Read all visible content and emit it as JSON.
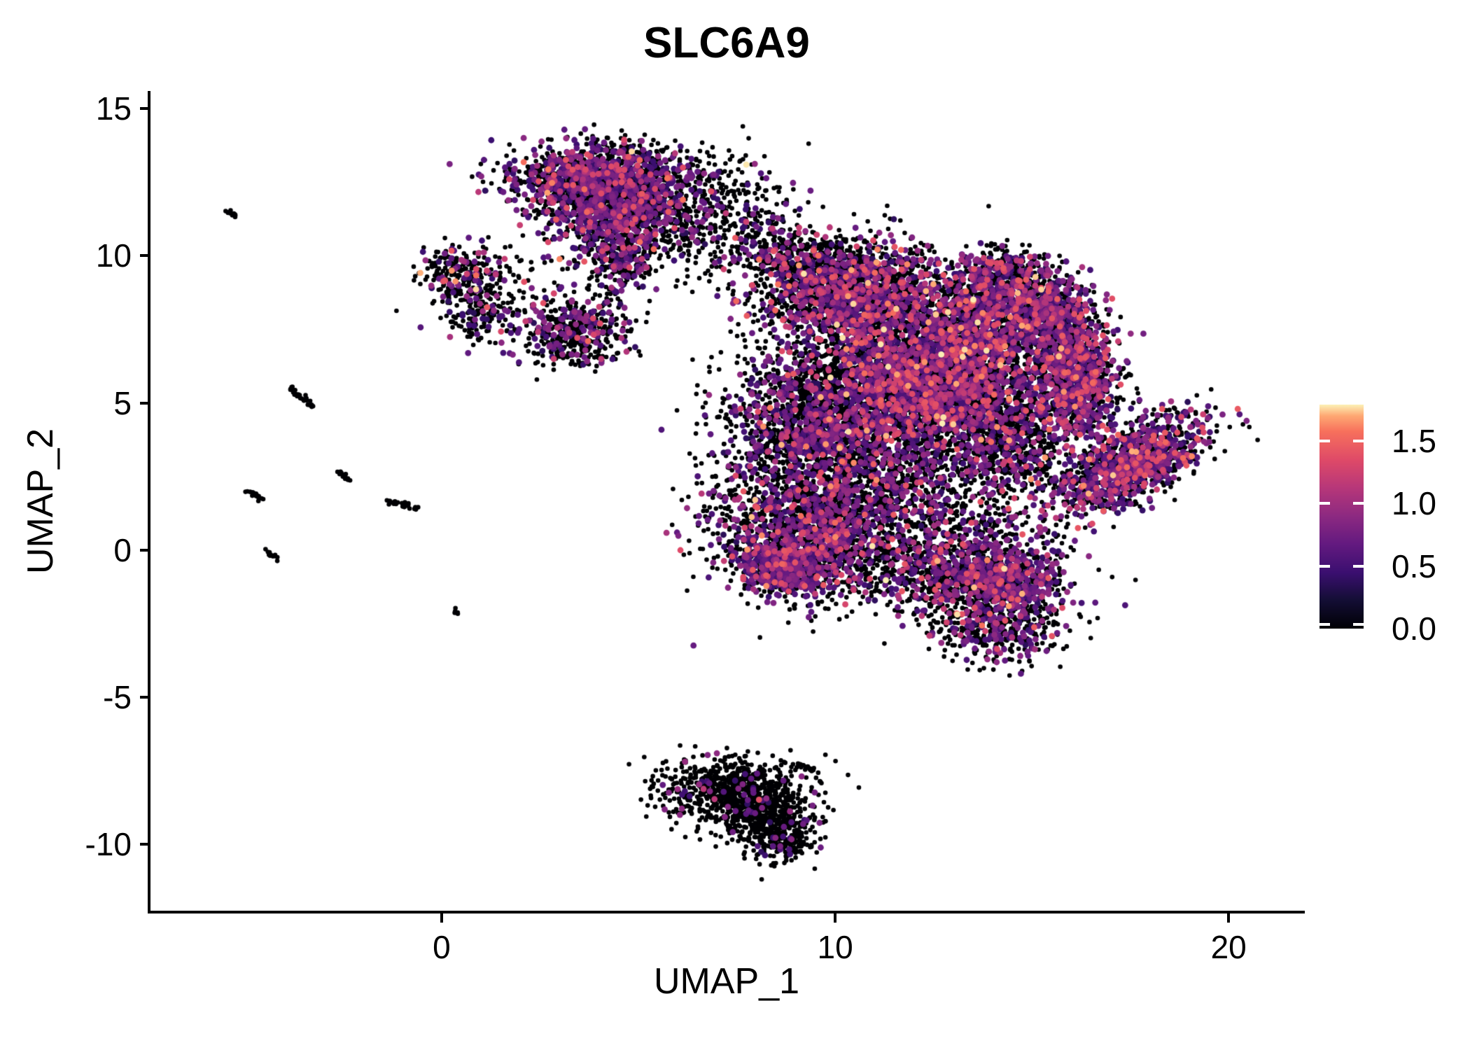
{
  "chart_data": {
    "type": "scatter",
    "title": "SLC6A9",
    "xlabel": "UMAP_1",
    "ylabel": "UMAP_2",
    "xlim": [
      -7.4,
      21.9
    ],
    "ylim": [
      -12.3,
      15.6
    ],
    "grid": false,
    "xticks": {
      "values": [
        0,
        10,
        20
      ],
      "labels": [
        "0",
        "10",
        "20"
      ]
    },
    "yticks": {
      "values": [
        15,
        10,
        5,
        0,
        -5,
        -10
      ],
      "labels": [
        "15",
        "10",
        "5",
        "0",
        "-5",
        "-10"
      ]
    },
    "legend": {
      "position": "right",
      "colormap": "magma",
      "range": [
        0,
        1.79
      ],
      "ticks": {
        "values": [
          1.5,
          1.0,
          0.5,
          0.0
        ],
        "labels": [
          "1.5",
          "1.0",
          "0.5",
          "0.0"
        ]
      },
      "anchors": [
        [
          0.0,
          "#000004"
        ],
        [
          0.13,
          "#140E36"
        ],
        [
          0.25,
          "#3B0F70"
        ],
        [
          0.38,
          "#641A80"
        ],
        [
          0.5,
          "#8C2981"
        ],
        [
          0.63,
          "#B73779"
        ],
        [
          0.75,
          "#DE4968"
        ],
        [
          0.88,
          "#F7705C"
        ],
        [
          0.95,
          "#FEA873"
        ],
        [
          1.0,
          "#FCF1B6"
        ]
      ]
    },
    "point_style": {
      "radius_base": 3.3,
      "radius_expressing": 4.4
    },
    "expression_bins": {
      "purple": [
        0.35,
        0.95
      ],
      "pink": [
        1.0,
        1.45
      ],
      "hot": [
        1.5,
        1.79
      ]
    },
    "seed": 1337,
    "clusters": [
      {
        "name": "streak-far-left-top",
        "type": "streak",
        "x1": -5.45,
        "y1": 11.55,
        "x2": -5.2,
        "y2": 11.3,
        "n": 12,
        "p": [
          0,
          0,
          0
        ]
      },
      {
        "name": "streak-left-5",
        "type": "streak",
        "x1": -3.85,
        "y1": 5.5,
        "x2": -3.3,
        "y2": 4.95,
        "n": 30,
        "p": [
          0,
          0,
          0
        ]
      },
      {
        "name": "streak-left-2a",
        "type": "streak",
        "x1": -4.9,
        "y1": 2.0,
        "x2": -4.55,
        "y2": 1.72,
        "n": 16,
        "p": [
          0,
          0,
          0
        ]
      },
      {
        "name": "streak-left-2b",
        "type": "streak",
        "x1": -2.62,
        "y1": 2.68,
        "x2": -2.33,
        "y2": 2.38,
        "n": 14,
        "p": [
          0.08,
          0,
          0
        ]
      },
      {
        "name": "streak-left-1",
        "type": "streak",
        "x1": -1.35,
        "y1": 1.65,
        "x2": -0.65,
        "y2": 1.42,
        "n": 26,
        "p": [
          0,
          0,
          0
        ]
      },
      {
        "name": "streak-left-0",
        "type": "streak",
        "x1": -4.45,
        "y1": -0.02,
        "x2": -4.22,
        "y2": -0.3,
        "n": 12,
        "p": [
          0,
          0,
          0
        ]
      },
      {
        "name": "streak-left-neg2",
        "type": "streak",
        "x1": 0.3,
        "y1": -2.02,
        "x2": 0.42,
        "y2": -2.15,
        "n": 5,
        "p": [
          0,
          0,
          0
        ]
      },
      {
        "name": "left-small-top",
        "type": "gauss",
        "cx": 0.45,
        "cy": 9.35,
        "sx": 0.52,
        "sy": 0.48,
        "n": 230,
        "p": [
          0.22,
          0.05,
          0.02
        ]
      },
      {
        "name": "left-small-bottom",
        "type": "gauss",
        "cx": 0.95,
        "cy": 7.95,
        "sx": 0.5,
        "sy": 0.42,
        "n": 150,
        "p": [
          0.17,
          0.03,
          0
        ]
      },
      {
        "name": "mid-left-cluster",
        "type": "gauss",
        "cx": 3.35,
        "cy": 7.4,
        "sx": 0.66,
        "sy": 0.56,
        "n": 470,
        "p": [
          0.22,
          0.04,
          0.003
        ]
      },
      {
        "name": "mid-left-bridge",
        "type": "gauss",
        "cx": 2.1,
        "cy": 9.1,
        "sx": 0.75,
        "sy": 0.65,
        "n": 55,
        "p": [
          0.12,
          0.02,
          0
        ]
      },
      {
        "name": "top-cluster-core",
        "type": "gauss",
        "cx": 4.1,
        "cy": 12.55,
        "sx": 1.15,
        "sy": 0.62,
        "n": 1500,
        "p": [
          0.32,
          0.055,
          0.008
        ]
      },
      {
        "name": "top-cluster-lower",
        "type": "gauss",
        "cx": 4.65,
        "cy": 11.25,
        "sx": 0.95,
        "sy": 0.7,
        "n": 750,
        "p": [
          0.3,
          0.05,
          0.005
        ]
      },
      {
        "name": "top-cluster-tail",
        "type": "gauss",
        "cx": 4.5,
        "cy": 9.9,
        "sx": 0.5,
        "sy": 0.65,
        "n": 240,
        "p": [
          0.27,
          0.03,
          0
        ]
      },
      {
        "name": "top-bridge-right",
        "type": "gauss",
        "cx": 6.6,
        "cy": 11.9,
        "sx": 1.15,
        "sy": 0.8,
        "n": 300,
        "p": [
          0.17,
          0.03,
          0.003
        ]
      },
      {
        "name": "top-bridge-lower",
        "type": "gauss",
        "cx": 7.1,
        "cy": 10.2,
        "sx": 0.9,
        "sy": 0.7,
        "n": 130,
        "p": [
          0.14,
          0.02,
          0
        ]
      },
      {
        "name": "bridge-to-main",
        "type": "gauss",
        "cx": 8.1,
        "cy": 10.9,
        "sx": 0.45,
        "sy": 0.6,
        "n": 70,
        "p": [
          0.15,
          0.03,
          0
        ]
      },
      {
        "name": "main-top-lobe",
        "type": "gauss",
        "cx": 10.35,
        "cy": 8.75,
        "sx": 1.2,
        "sy": 0.85,
        "n": 1800,
        "p": [
          0.28,
          0.08,
          0.012
        ]
      },
      {
        "name": "main-top-left-edge",
        "type": "gauss",
        "cx": 9.0,
        "cy": 9.9,
        "sx": 0.65,
        "sy": 0.5,
        "n": 200,
        "p": [
          0.2,
          0.1,
          0.01
        ]
      },
      {
        "name": "main-central-dense",
        "type": "gauss",
        "cx": 12.5,
        "cy": 5.8,
        "sx": 1.4,
        "sy": 1.35,
        "n": 4300,
        "p": [
          0.3,
          0.08,
          0.014
        ]
      },
      {
        "name": "main-left-lobe",
        "type": "gauss",
        "cx": 9.6,
        "cy": 4.4,
        "sx": 1.1,
        "sy": 1.35,
        "n": 1900,
        "p": [
          0.24,
          0.04,
          0.004
        ]
      },
      {
        "name": "main-lower-bridge",
        "type": "gauss",
        "cx": 10.9,
        "cy": 2.0,
        "sx": 1.65,
        "sy": 1.05,
        "n": 1100,
        "p": [
          0.21,
          0.04,
          0.003
        ]
      },
      {
        "name": "arm-top",
        "type": "gauss",
        "cx": 14.3,
        "cy": 9.35,
        "sx": 0.6,
        "sy": 0.45,
        "n": 380,
        "p": [
          0.3,
          0.07,
          0.008
        ]
      },
      {
        "name": "arm-upper",
        "type": "gauss",
        "cx": 15.5,
        "cy": 8.2,
        "sx": 0.55,
        "sy": 0.6,
        "n": 520,
        "p": [
          0.36,
          0.07,
          0.01
        ]
      },
      {
        "name": "arm-mid",
        "type": "gauss",
        "cx": 16.1,
        "cy": 6.6,
        "sx": 0.5,
        "sy": 0.75,
        "n": 560,
        "p": [
          0.4,
          0.08,
          0.01
        ]
      },
      {
        "name": "arm-lower",
        "type": "gauss",
        "cx": 16.25,
        "cy": 5.2,
        "sx": 0.5,
        "sy": 0.7,
        "n": 480,
        "p": [
          0.42,
          0.08,
          0.008
        ]
      },
      {
        "name": "main-right-mid",
        "type": "gauss",
        "cx": 14.6,
        "cy": 3.4,
        "sx": 0.85,
        "sy": 0.95,
        "n": 600,
        "p": [
          0.25,
          0.05,
          0.005
        ]
      },
      {
        "name": "main-upper-right",
        "type": "gauss",
        "cx": 13.8,
        "cy": 7.9,
        "sx": 0.85,
        "sy": 0.75,
        "n": 800,
        "p": [
          0.33,
          0.1,
          0.02
        ]
      },
      {
        "name": "main-bottom-left",
        "type": "gauss",
        "cx": 9.4,
        "cy": 0.3,
        "sx": 1.05,
        "sy": 1.0,
        "n": 1400,
        "p": [
          0.28,
          0.06,
          0.004
        ]
      },
      {
        "name": "bottom-left-purple-pocket",
        "type": "gauss",
        "cx": 8.7,
        "cy": -0.6,
        "sx": 0.5,
        "sy": 0.42,
        "n": 360,
        "p": [
          0.55,
          0.1,
          0.005
        ]
      },
      {
        "name": "main-bottom-right",
        "type": "gauss",
        "cx": 13.2,
        "cy": -0.7,
        "sx": 1.25,
        "sy": 0.9,
        "n": 1150,
        "p": [
          0.26,
          0.06,
          0.004
        ]
      },
      {
        "name": "bottom-right-purple-pocket",
        "type": "gauss",
        "cx": 14.35,
        "cy": -0.9,
        "sx": 0.55,
        "sy": 0.45,
        "n": 320,
        "p": [
          0.45,
          0.1,
          0.005
        ]
      },
      {
        "name": "main-bottom-tail",
        "type": "gauss",
        "cx": 14.2,
        "cy": -2.4,
        "sx": 0.8,
        "sy": 0.75,
        "n": 550,
        "p": [
          0.24,
          0.04,
          0.002
        ]
      },
      {
        "name": "left-filler",
        "type": "gauss",
        "cx": 7.5,
        "cy": 1.5,
        "sx": 0.7,
        "sy": 1.1,
        "n": 140,
        "p": [
          0.18,
          0.03,
          0
        ]
      },
      {
        "name": "right-diagonal-cluster",
        "type": "gauss",
        "cx": 17.55,
        "cy": 2.9,
        "sx": 1.15,
        "sy": 0.52,
        "rot": 41,
        "n": 1200,
        "p": [
          0.38,
          0.09,
          0.012
        ]
      },
      {
        "name": "bottom-island-upper",
        "type": "gauss",
        "cx": 7.35,
        "cy": -8.1,
        "sx": 0.9,
        "sy": 0.52,
        "n": 700,
        "p": [
          0.06,
          0.004,
          0
        ]
      },
      {
        "name": "bottom-island-lower",
        "type": "gauss",
        "cx": 8.3,
        "cy": -9.2,
        "sx": 0.62,
        "sy": 0.55,
        "n": 480,
        "p": [
          0.07,
          0.003,
          0
        ]
      },
      {
        "name": "bottom-island-right-tip",
        "type": "streak",
        "x1": 8.95,
        "y1": -7.25,
        "x2": 9.55,
        "y2": -7.5,
        "n": 22,
        "p": [
          0,
          0,
          0
        ]
      },
      {
        "name": "bottom-island-bottom-tip",
        "type": "gauss",
        "cx": 8.7,
        "cy": -10.05,
        "sx": 0.32,
        "sy": 0.28,
        "n": 100,
        "p": [
          0.05,
          0,
          0
        ]
      }
    ]
  }
}
